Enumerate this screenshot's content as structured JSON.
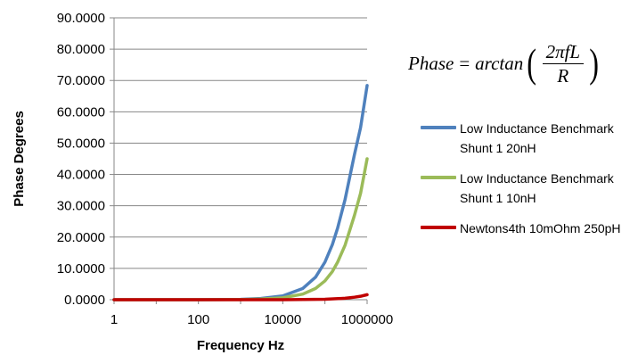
{
  "chart_data": {
    "type": "line",
    "title": "",
    "xlabel": "Frequency Hz",
    "ylabel": "Phase Degrees",
    "x_scale": "log",
    "xlim": [
      1,
      1000000
    ],
    "ylim": [
      0,
      90
    ],
    "x_ticks": [
      1,
      100,
      10000,
      1000000
    ],
    "x_tick_labels": [
      "1",
      "100",
      "10000",
      "1000000"
    ],
    "y_ticks": [
      0,
      10,
      20,
      30,
      40,
      50,
      60,
      70,
      80,
      90
    ],
    "y_tick_labels": [
      "0.0000",
      "10.0000",
      "20.0000",
      "30.0000",
      "40.0000",
      "50.0000",
      "60.0000",
      "70.0000",
      "80.0000",
      "90.0000"
    ],
    "grid": "horizontal major gridlines",
    "legend_position": "right",
    "annotation": {
      "formula_lhs": "Phase",
      "formula_eq": "=",
      "formula_fn": "arctan",
      "formula_num": "2πfL",
      "formula_den": "R"
    },
    "series": [
      {
        "name": "Low Inductance Benchmark Shunt 1 20nH",
        "color": "#4f81bd",
        "x": [
          1,
          10,
          100,
          1000,
          3000,
          10000,
          30000,
          60000,
          100000,
          150000,
          200000,
          300000,
          500000,
          700000,
          1000000
        ],
        "y": [
          0,
          0,
          0,
          0.1,
          0.4,
          1.2,
          3.6,
          7.2,
          12,
          17.6,
          22.9,
          32.0,
          46.3,
          55.0,
          68.4
        ]
      },
      {
        "name": "Low Inductance Benchmark Shunt 1 10nH",
        "color": "#9bbb59",
        "x": [
          1,
          10,
          100,
          1000,
          3000,
          10000,
          30000,
          60000,
          100000,
          150000,
          200000,
          300000,
          500000,
          700000,
          1000000
        ],
        "y": [
          0,
          0,
          0,
          0.05,
          0.2,
          0.6,
          1.8,
          3.6,
          6.0,
          9.0,
          12,
          17.4,
          26.9,
          34.0,
          45.0
        ]
      },
      {
        "name": "Newtons4th 10mOhm 250pH",
        "color": "#c00000",
        "x": [
          1,
          10,
          100,
          1000,
          10000,
          100000,
          300000,
          500000,
          700000,
          1000000
        ],
        "y": [
          0,
          0,
          0,
          0,
          0,
          0.15,
          0.45,
          0.8,
          1.1,
          1.6
        ]
      }
    ]
  }
}
